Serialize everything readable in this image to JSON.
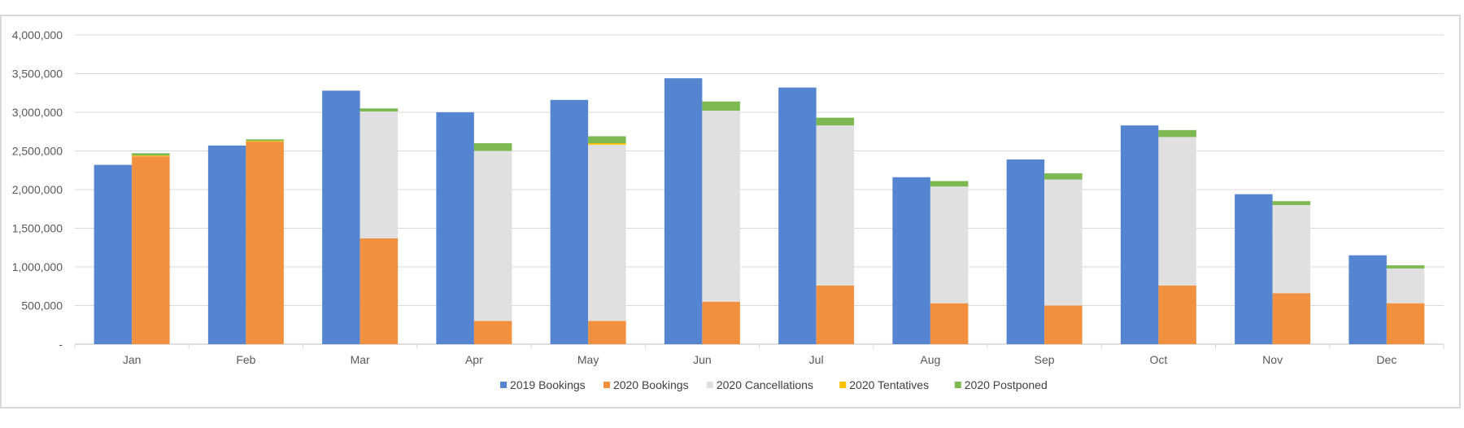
{
  "chart_data": {
    "type": "bar",
    "title": "",
    "xlabel": "",
    "ylabel": "",
    "ylim": [
      0,
      4000000
    ],
    "yticks": [
      0,
      500000,
      1000000,
      1500000,
      2000000,
      2500000,
      3000000,
      3500000,
      4000000
    ],
    "ytick_labels": [
      "-",
      "500,000",
      "1,000,000",
      "1,500,000",
      "2,000,000",
      "2,500,000",
      "3,000,000",
      "3,500,000",
      "4,000,000"
    ],
    "categories": [
      "Jan",
      "Feb",
      "Mar",
      "Apr",
      "May",
      "Jun",
      "Jul",
      "Aug",
      "Sep",
      "Oct",
      "Nov",
      "Dec"
    ],
    "grid": true,
    "legend_position": "bottom",
    "stack_note": "2020 Bookings, 2020 Cancellations, 2020 Tentatives and 2020 Postponed are stacked together beside the 2019 Bookings column",
    "series": [
      {
        "name": "2019 Bookings",
        "color": "#5585d0",
        "stack": "2019",
        "values": [
          2320000,
          2570000,
          3280000,
          3000000,
          3160000,
          3440000,
          3320000,
          2160000,
          2390000,
          2830000,
          1940000,
          1150000
        ]
      },
      {
        "name": "2020 Bookings",
        "color": "#f19140",
        "stack": "2020",
        "values": [
          2430000,
          2620000,
          1370000,
          300000,
          300000,
          550000,
          760000,
          530000,
          500000,
          760000,
          660000,
          530000
        ]
      },
      {
        "name": "2020 Cancellations",
        "color": "#e0e0e0",
        "stack": "2020",
        "values": [
          0,
          0,
          1640000,
          2200000,
          2280000,
          2470000,
          2070000,
          1510000,
          1630000,
          1920000,
          1140000,
          450000
        ]
      },
      {
        "name": "2020 Tentatives",
        "color": "#ffc000",
        "stack": "2020",
        "values": [
          10000,
          10000,
          0,
          0,
          20000,
          0,
          0,
          0,
          0,
          0,
          0,
          0
        ]
      },
      {
        "name": "2020 Postponed",
        "color": "#7cb950",
        "stack": "2020",
        "values": [
          30000,
          20000,
          40000,
          100000,
          90000,
          120000,
          100000,
          70000,
          80000,
          90000,
          50000,
          40000
        ]
      }
    ]
  }
}
